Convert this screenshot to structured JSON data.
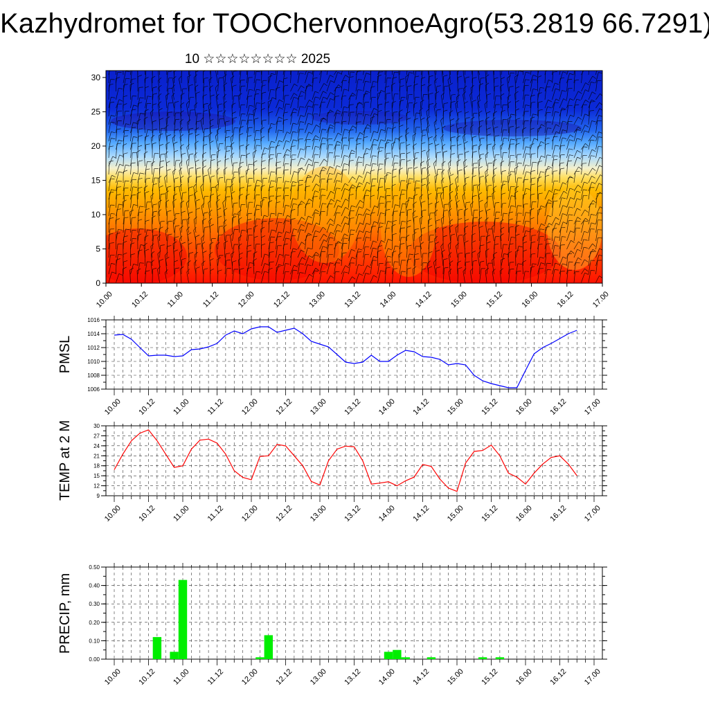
{
  "title": "Kazhydromet for TOOChervonnoeAgro(53.2819 66.7291)",
  "subtitle": "10 ☆☆☆☆☆☆☆☆ 2025",
  "colors": {
    "pmsl_line": "#0000ff",
    "temp_line": "#ff0000",
    "precip_bar": "#00ee00",
    "grid": "#000000"
  },
  "chart_data": [
    {
      "id": "vertical_section",
      "type": "heatmap",
      "description_type": "height-time cross section with wind barbs",
      "x_ticks": [
        "10.00",
        "10.12",
        "11.00",
        "11.12",
        "12.00",
        "12.12",
        "13.00",
        "13.12",
        "14.00",
        "14.12",
        "15.00",
        "15.12",
        "16.00",
        "16.12",
        "17.00"
      ],
      "y_ticks": [
        "0",
        "5",
        "10",
        "15",
        "20",
        "25",
        "30"
      ],
      "ylim": [
        0,
        31
      ],
      "colormap": [
        "#ff0000",
        "#ff6600",
        "#ffbb00",
        "#ffee66",
        "#aaddff",
        "#3399ff",
        "#0044dd",
        "#0011bb"
      ]
    },
    {
      "id": "pmsl",
      "type": "line",
      "ylabel": "PMSL",
      "x_ticks": [
        "10.00",
        "10.12",
        "11.00",
        "11.12",
        "12.00",
        "12.12",
        "13.00",
        "13.12",
        "14.00",
        "14.12",
        "15.00",
        "15.12",
        "16.00",
        "16.12",
        "17.00"
      ],
      "y_ticks": [
        "1016",
        "1014",
        "1012",
        "1010",
        "1008",
        "1006"
      ],
      "ylim": [
        1006,
        1016
      ],
      "xlim": [
        0,
        168
      ],
      "x": [
        0,
        3,
        6,
        9,
        12,
        15,
        18,
        21,
        24,
        27,
        30,
        33,
        36,
        39,
        42,
        45,
        48,
        51,
        54,
        57,
        60,
        63,
        66,
        69,
        72,
        75,
        78,
        81,
        84,
        87,
        90,
        93,
        96,
        99,
        102,
        105,
        108,
        111,
        114,
        117,
        120,
        123,
        126,
        129,
        132,
        135,
        138,
        141,
        144,
        147,
        150,
        153,
        156,
        159,
        162
      ],
      "values": [
        1013.8,
        1013.9,
        1013.2,
        1012,
        1010.8,
        1010.9,
        1010.9,
        1010.7,
        1010.8,
        1011.7,
        1011.8,
        1012.1,
        1012.6,
        1013.8,
        1014.4,
        1014,
        1014.7,
        1015,
        1015,
        1014.2,
        1014.5,
        1014.8,
        1014,
        1012.9,
        1012.5,
        1012.1,
        1011,
        1009.9,
        1009.7,
        1009.9,
        1010.9,
        1010,
        1010,
        1010.9,
        1011.6,
        1011.4,
        1010.7,
        1010.6,
        1010.3,
        1009.5,
        1009.7,
        1009.5,
        1008,
        1007.2,
        1006.8,
        1006.5,
        1006.2,
        1006.2,
        1008.7,
        1011.1,
        1012,
        1012.6,
        1013.3,
        1014,
        1014.5
      ]
    },
    {
      "id": "temp2m",
      "type": "line",
      "ylabel": "TEMP at 2 M",
      "x_ticks": [
        "10.00",
        "10.12",
        "11.00",
        "11.12",
        "12.00",
        "12.12",
        "13.00",
        "13.12",
        "14.00",
        "14.12",
        "15.00",
        "15.12",
        "16.00",
        "16.12",
        "17.00"
      ],
      "y_ticks": [
        "30",
        "27",
        "24",
        "21",
        "18",
        "15",
        "12",
        "9"
      ],
      "ylim": [
        9,
        30
      ],
      "xlim": [
        0,
        168
      ],
      "x": [
        0,
        3,
        6,
        9,
        12,
        15,
        18,
        21,
        24,
        27,
        30,
        33,
        36,
        39,
        42,
        45,
        48,
        51,
        54,
        57,
        60,
        63,
        66,
        69,
        72,
        75,
        78,
        81,
        84,
        87,
        90,
        93,
        96,
        99,
        102,
        105,
        108,
        111,
        114,
        117,
        120,
        123,
        126,
        129,
        132,
        135,
        138,
        141,
        144,
        147,
        150,
        153,
        156,
        159,
        162
      ],
      "values": [
        16.8,
        21.5,
        25.5,
        27.8,
        28.8,
        25.5,
        21.5,
        17.5,
        18,
        23,
        25.7,
        26,
        24.8,
        21.5,
        16.5,
        14.5,
        13.8,
        20.8,
        21,
        24.4,
        24,
        21,
        18,
        13.3,
        12.2,
        19.5,
        23,
        23.9,
        23.7,
        19.5,
        12.5,
        12.8,
        13.2,
        12,
        13.5,
        14.6,
        18.4,
        17.8,
        14,
        11.3,
        10.3,
        18.8,
        22.3,
        22.6,
        24.2,
        21,
        15.8,
        14.6,
        12.5,
        15.8,
        18.5,
        20.5,
        21,
        18.5,
        15
      ]
    },
    {
      "id": "precip",
      "type": "bar",
      "ylabel": "PRECIP, mm",
      "x_ticks": [
        "10.00",
        "10.12",
        "11.00",
        "11.12",
        "12.00",
        "12.12",
        "13.00",
        "13.12",
        "14.00",
        "14.12",
        "15.00",
        "15.12",
        "16.00",
        "16.12",
        "17.00"
      ],
      "y_ticks": [
        "0.50",
        "0.40",
        "0.30",
        "0.20",
        "0.10",
        "0.00"
      ],
      "ylim": [
        0,
        0.5
      ],
      "xlim": [
        0,
        168
      ],
      "x": [
        15,
        21,
        24,
        51,
        54,
        96,
        99,
        102,
        111,
        129,
        135
      ],
      "values": [
        0.12,
        0.04,
        0.43,
        0.01,
        0.13,
        0.04,
        0.05,
        0.01,
        0.01,
        0.01,
        0.01
      ]
    }
  ]
}
